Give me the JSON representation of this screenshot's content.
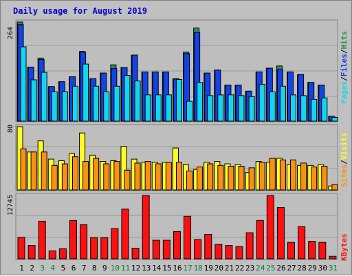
{
  "title": "Daily usage for August 2019",
  "colors": {
    "background": "#c0c0c0",
    "panel": "#bebebe",
    "grid": "#9a9a9a",
    "title": "#0000cc",
    "tick_weekday": "#000000",
    "tick_weekend": "#008040",
    "hits": "#2c8a57",
    "files": "#1243e8",
    "pages": "#12d6f0",
    "visits": "#ffff22",
    "sites": "#ff8f10",
    "kbytes": "#ff1010"
  },
  "chart_data": [
    {
      "type": "bar",
      "panel": "hits-files-pages",
      "ymax_label": "264",
      "legend": [
        {
          "name": "Pages",
          "color": "#12d6f0"
        },
        {
          "name": "Files",
          "color": "#1243e8"
        },
        {
          "name": "Hits",
          "color": "#2c8a57"
        }
      ],
      "ylim": [
        0,
        264
      ],
      "series": [
        {
          "name": "Hits",
          "values": [
            264,
            144,
            168,
            92,
            105,
            118,
            186,
            113,
            128,
            150,
            143,
            176,
            131,
            131,
            131,
            113,
            184,
            248,
            128,
            136,
            96,
            96,
            80,
            131,
            141,
            147,
            131,
            124,
            103,
            96,
            13
          ]
        },
        {
          "name": "Files",
          "values": [
            257,
            144,
            164,
            92,
            105,
            118,
            184,
            113,
            128,
            140,
            143,
            176,
            131,
            131,
            131,
            112,
            180,
            236,
            128,
            136,
            96,
            96,
            80,
            131,
            141,
            138,
            131,
            124,
            103,
            96,
            13
          ]
        },
        {
          "name": "Pages",
          "values": [
            198,
            110,
            130,
            78,
            78,
            93,
            152,
            93,
            78,
            93,
            122,
            107,
            70,
            70,
            70,
            111,
            53,
            103,
            68,
            70,
            70,
            68,
            65,
            98,
            78,
            93,
            70,
            68,
            58,
            62,
            10
          ]
        }
      ]
    },
    {
      "type": "bar",
      "panel": "visits-sites",
      "ymax_label": "80",
      "legend": [
        {
          "name": "Sites",
          "color": "#ff8f10"
        },
        {
          "name": "Visits",
          "color": "#ffff22"
        }
      ],
      "ylim": [
        0,
        80
      ],
      "series": [
        {
          "name": "Visits",
          "values": [
            80,
            48,
            62,
            39,
            37,
            46,
            72,
            44,
            36,
            37,
            55,
            39,
            35,
            35,
            35,
            53,
            32,
            26,
            35,
            36,
            33,
            32,
            22,
            36,
            35,
            40,
            32,
            31,
            31,
            32,
            5
          ]
        },
        {
          "name": "Sites",
          "values": [
            52,
            48,
            48,
            31,
            33,
            42,
            36,
            40,
            33,
            36,
            25,
            34,
            36,
            33,
            35,
            35,
            24,
            29,
            33,
            31,
            30,
            30,
            28,
            35,
            40,
            38,
            38,
            34,
            29,
            30,
            7
          ]
        }
      ]
    },
    {
      "type": "bar",
      "panel": "kbytes",
      "ymax_label": "12745",
      "legend": [
        {
          "name": "KBytes",
          "color": "#ff1010"
        }
      ],
      "ylim": [
        0,
        12745
      ],
      "series": [
        {
          "name": "KBytes",
          "values": [
            4318,
            2697,
            7559,
            1587,
            2017,
            7712,
            6846,
            4272,
            4272,
            6081,
            10002,
            2139,
            12745,
            3737,
            3737,
            5481,
            8553,
            3875,
            4915,
            2896,
            2701,
            2453,
            5246,
            7712,
            12745,
            10324,
            3293,
            6473,
            3529,
            3297,
            521
          ]
        }
      ]
    }
  ],
  "days": [
    "1",
    "2",
    "3",
    "4",
    "5",
    "6",
    "7",
    "8",
    "9",
    "10",
    "11",
    "12",
    "13",
    "14",
    "15",
    "16",
    "17",
    "18",
    "19",
    "20",
    "21",
    "22",
    "23",
    "24",
    "25",
    "26",
    "27",
    "28",
    "29",
    "30",
    "31"
  ],
  "weekend_days": [
    "3",
    "4",
    "10",
    "11",
    "17",
    "18",
    "24",
    "25",
    "31"
  ]
}
